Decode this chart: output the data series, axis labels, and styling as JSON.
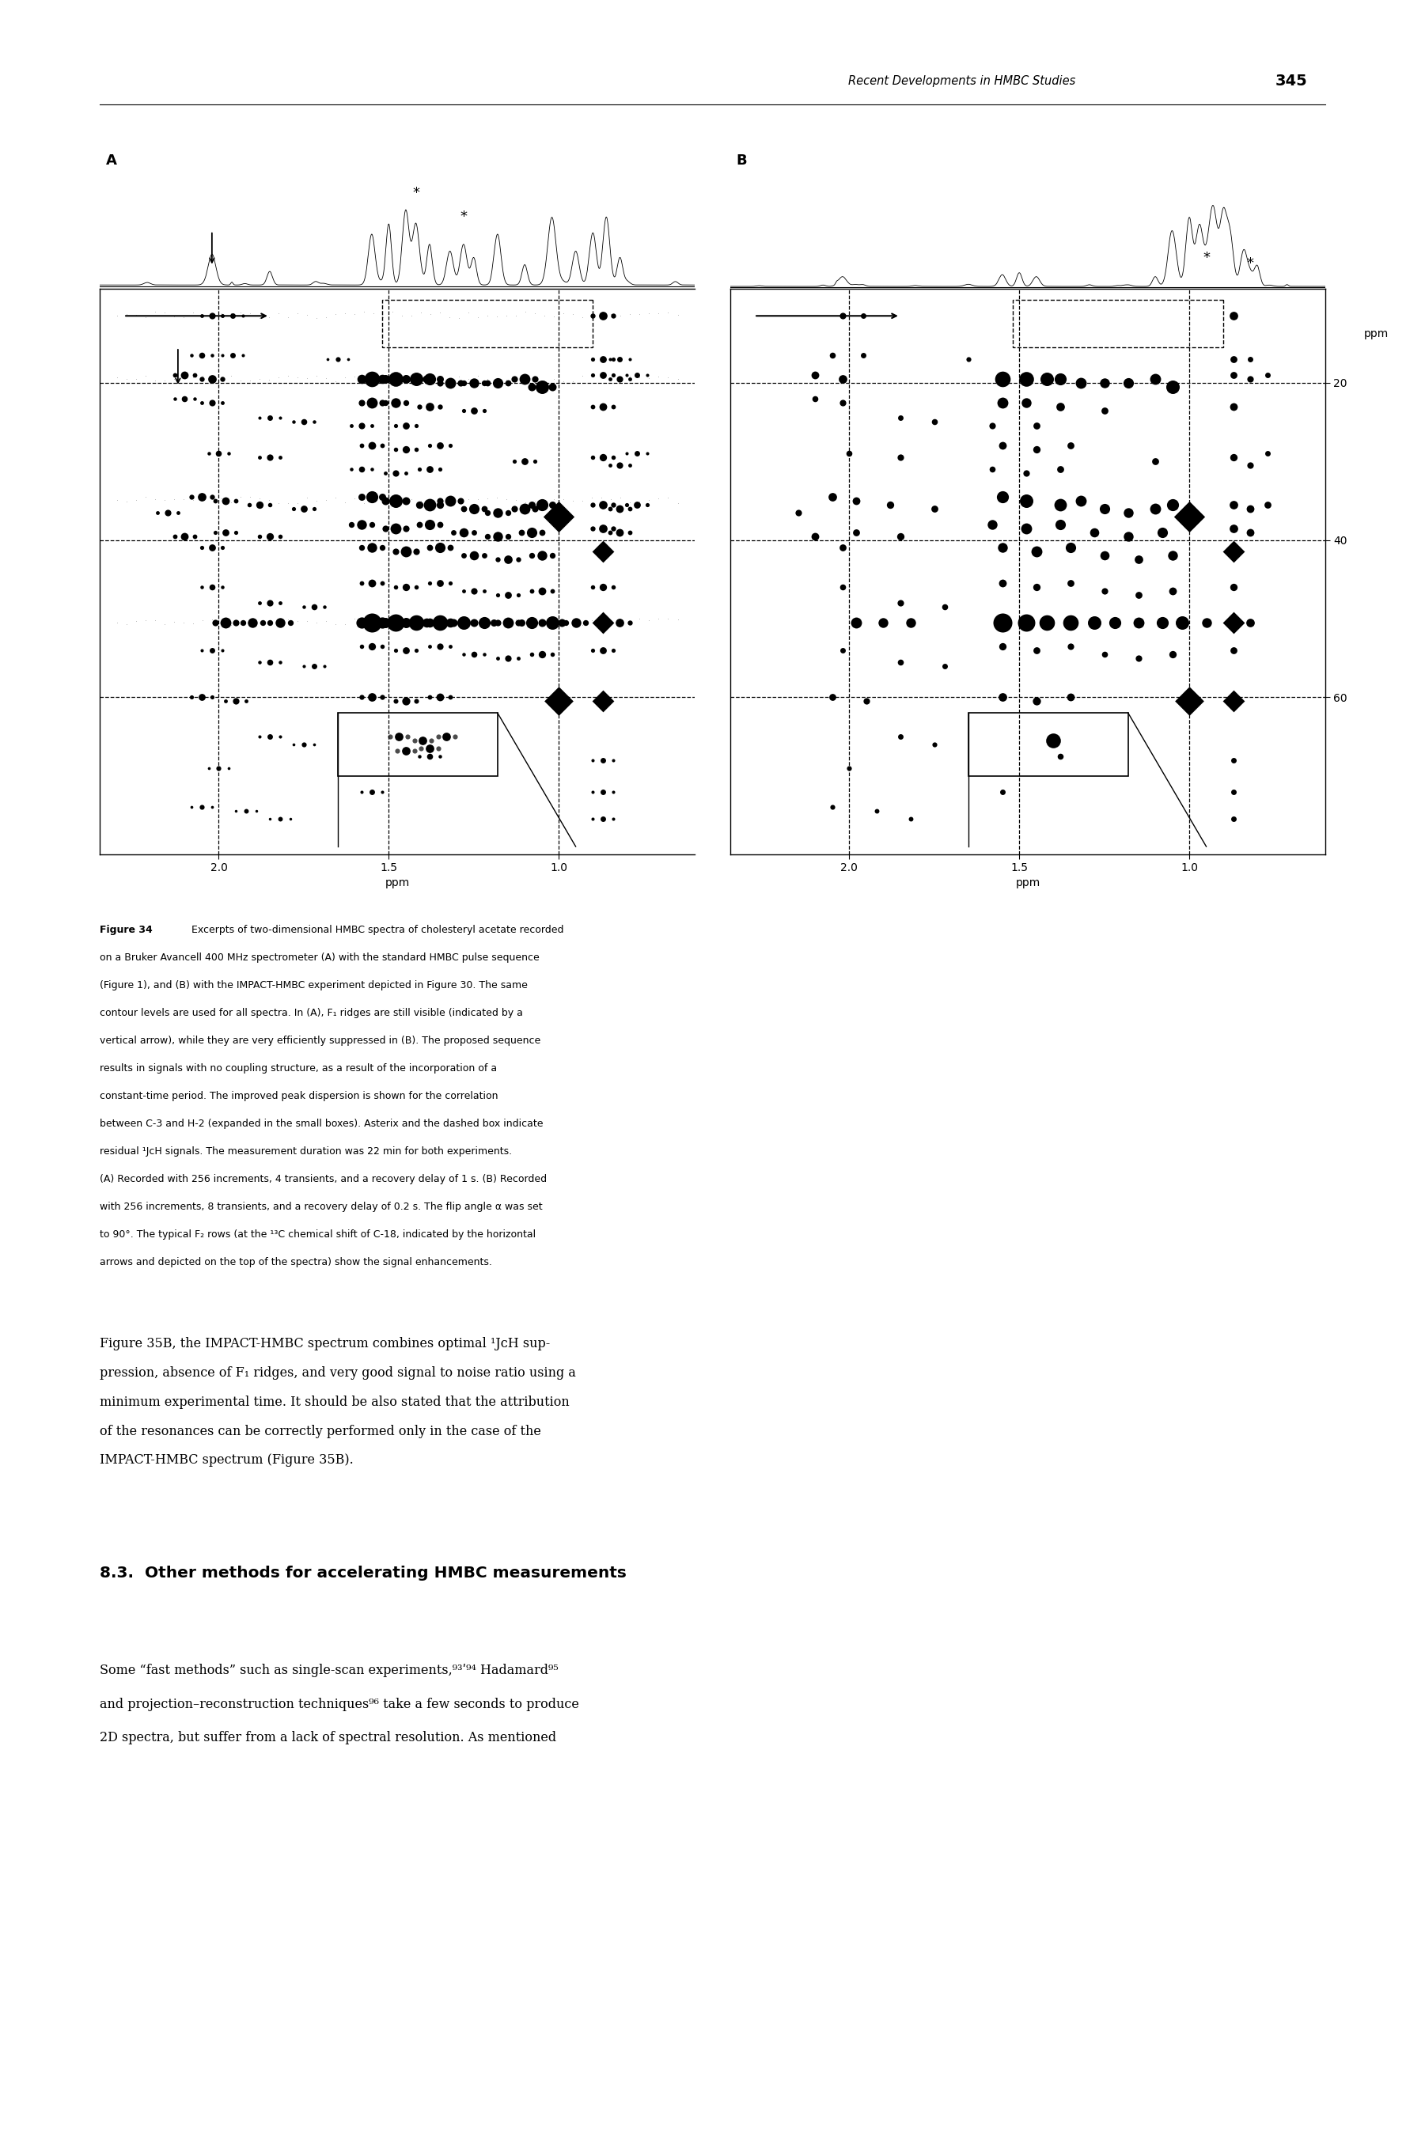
{
  "header_text": "Recent Developments in HMBC Studies",
  "page_number": "345",
  "bg_color": "#ffffff",
  "text_color": "#000000",
  "xlim": [
    2.35,
    0.6
  ],
  "ylim": [
    80,
    8
  ],
  "yticks": [
    20,
    40,
    60
  ],
  "xticks": [
    2.0,
    1.5,
    1.0
  ],
  "dashed_ylines": [
    20,
    40,
    60
  ],
  "dashed_xlines": [
    2.0,
    1.5,
    1.0
  ],
  "panel_labels": [
    "A",
    "B"
  ],
  "full_caption": "Figure 34    Excerpts of two-dimensional HMBC spectra of cholesteryl acetate recorded\non a Bruker Avancell 400 MHz spectrometer (A) with the standard HMBC pulse sequence\n(Figure 1), and (B) with the IMPACT-HMBC experiment depicted in Figure 30. The same\ncontour levels are used for all spectra. In (A), F₁ ridges are still visible (indicated by a\nvertical arrow), while they are very efficiently suppressed in (B). The proposed sequence\nresults in signals with no coupling structure, as a result of the incorporation of a\nconstant-time period. The improved peak dispersion is shown for the correlation\nbetween C-3 and H-2 (expanded in the small boxes). Asterix and the dashed box indicate\nresidual ¹JᴄH signals. The measurement duration was 22 min for both experiments.\n(A) Recorded with 256 increments, 4 transients, and a recovery delay of 1 s. (B) Recorded\nwith 256 increments, 8 transients, and a recovery delay of 0.2 s. The flip angle α was set\nto 90°. The typical F₂ rows (at the ¹³C chemical shift of C-18, indicated by the horizontal\narrows and depicted on the top of the spectra) show the signal enhancements.",
  "body1_lines": [
    "Figure 35B, the IMPACT-HMBC spectrum combines optimal ¹JᴄH sup-",
    "pression, absence of F₁ ridges, and very good signal to noise ratio using a",
    "minimum experimental time. It should be also stated that the attribution",
    "of the resonances can be correctly performed only in the case of the",
    "IMPACT-HMBC spectrum (Figure 35B)."
  ],
  "section_title": "8.3.  Other methods for accelerating HMBC measurements",
  "body2_lines": [
    "Some “fast methods” such as single-scan experiments,⁹³ʹ⁹⁴ Hadamard⁹⁵",
    "and projection–reconstruction techniques⁹⁶ take a few seconds to produce",
    "2D spectra, but suffer from a lack of spectral resolution. As mentioned"
  ]
}
